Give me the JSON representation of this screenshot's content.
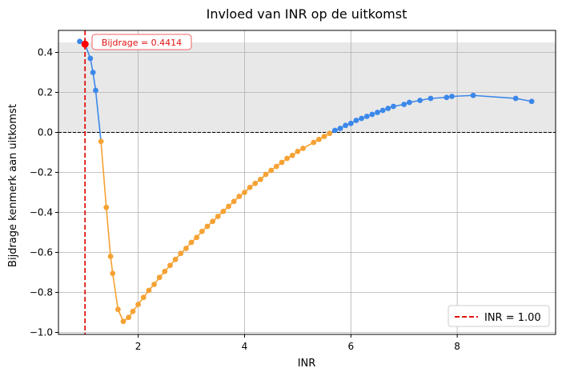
{
  "chart_data": {
    "type": "line",
    "title": "Invloed van INR op de uitkomst",
    "xlabel": "INR",
    "ylabel": "Bijdrage kenmerk aan uitkomst",
    "xlim": [
      0.5,
      9.85
    ],
    "ylim": [
      -1.01,
      0.51
    ],
    "xticks": [
      2,
      4,
      6,
      8
    ],
    "yticks": [
      -1.0,
      -0.8,
      -0.6,
      -0.4,
      -0.2,
      0.0,
      0.2,
      0.4
    ],
    "ytick_labels": [
      "−1.0",
      "−0.8",
      "−0.6",
      "−0.4",
      "−0.2",
      "0.0",
      "0.2",
      "0.4"
    ],
    "xtick_labels": [
      "2",
      "4",
      "6",
      "8"
    ],
    "grid": true,
    "shaded_band": {
      "y_from": 0.0,
      "y_to": 0.45,
      "color": "#e8e8e8"
    },
    "zero_line": {
      "y": 0.0,
      "color": "#000000",
      "style": "dashed"
    },
    "reference_line": {
      "x": 1.0,
      "color": "#e0120f",
      "style": "dashed",
      "label": "INR = 1.00"
    },
    "highlight_point": {
      "x": 1.0,
      "y": 0.4414,
      "color": "#ff0000"
    },
    "annotation": {
      "text": "Bijdrage = 0.4414",
      "color": "#e0120f"
    },
    "legend": {
      "position": "bottom-right",
      "entries": [
        "INR = 1.00"
      ]
    },
    "colors": {
      "positive": "#3b87ea",
      "negative": "#f5a234"
    },
    "points": [
      [
        0.9,
        0.455
      ],
      [
        1.0,
        0.4414
      ],
      [
        1.1,
        0.37
      ],
      [
        1.15,
        0.3
      ],
      [
        1.2,
        0.21
      ],
      [
        1.3,
        -0.045
      ],
      [
        1.4,
        -0.375
      ],
      [
        1.48,
        -0.62
      ],
      [
        1.52,
        -0.705
      ],
      [
        1.62,
        -0.885
      ],
      [
        1.72,
        -0.945
      ],
      [
        1.82,
        -0.925
      ],
      [
        1.9,
        -0.895
      ],
      [
        2.0,
        -0.86
      ],
      [
        2.1,
        -0.825
      ],
      [
        2.2,
        -0.79
      ],
      [
        2.3,
        -0.76
      ],
      [
        2.4,
        -0.725
      ],
      [
        2.5,
        -0.695
      ],
      [
        2.6,
        -0.665
      ],
      [
        2.7,
        -0.635
      ],
      [
        2.8,
        -0.605
      ],
      [
        2.9,
        -0.58
      ],
      [
        3.0,
        -0.55
      ],
      [
        3.1,
        -0.525
      ],
      [
        3.2,
        -0.495
      ],
      [
        3.3,
        -0.47
      ],
      [
        3.4,
        -0.445
      ],
      [
        3.5,
        -0.42
      ],
      [
        3.6,
        -0.395
      ],
      [
        3.7,
        -0.37
      ],
      [
        3.8,
        -0.345
      ],
      [
        3.9,
        -0.32
      ],
      [
        4.0,
        -0.3
      ],
      [
        4.1,
        -0.275
      ],
      [
        4.2,
        -0.255
      ],
      [
        4.3,
        -0.235
      ],
      [
        4.4,
        -0.21
      ],
      [
        4.5,
        -0.19
      ],
      [
        4.6,
        -0.17
      ],
      [
        4.7,
        -0.15
      ],
      [
        4.8,
        -0.13
      ],
      [
        4.9,
        -0.115
      ],
      [
        5.0,
        -0.095
      ],
      [
        5.1,
        -0.08
      ],
      [
        5.3,
        -0.05
      ],
      [
        5.4,
        -0.035
      ],
      [
        5.5,
        -0.02
      ],
      [
        5.6,
        -0.005
      ],
      [
        5.7,
        0.01
      ],
      [
        5.8,
        0.02
      ],
      [
        5.9,
        0.035
      ],
      [
        6.0,
        0.045
      ],
      [
        6.1,
        0.06
      ],
      [
        6.2,
        0.07
      ],
      [
        6.3,
        0.08
      ],
      [
        6.4,
        0.09
      ],
      [
        6.5,
        0.1
      ],
      [
        6.6,
        0.11
      ],
      [
        6.7,
        0.12
      ],
      [
        6.8,
        0.13
      ],
      [
        7.0,
        0.14
      ],
      [
        7.1,
        0.15
      ],
      [
        7.3,
        0.16
      ],
      [
        7.5,
        0.17
      ],
      [
        7.8,
        0.175
      ],
      [
        7.9,
        0.18
      ],
      [
        8.3,
        0.185
      ],
      [
        9.1,
        0.17
      ],
      [
        9.4,
        0.155
      ]
    ]
  }
}
